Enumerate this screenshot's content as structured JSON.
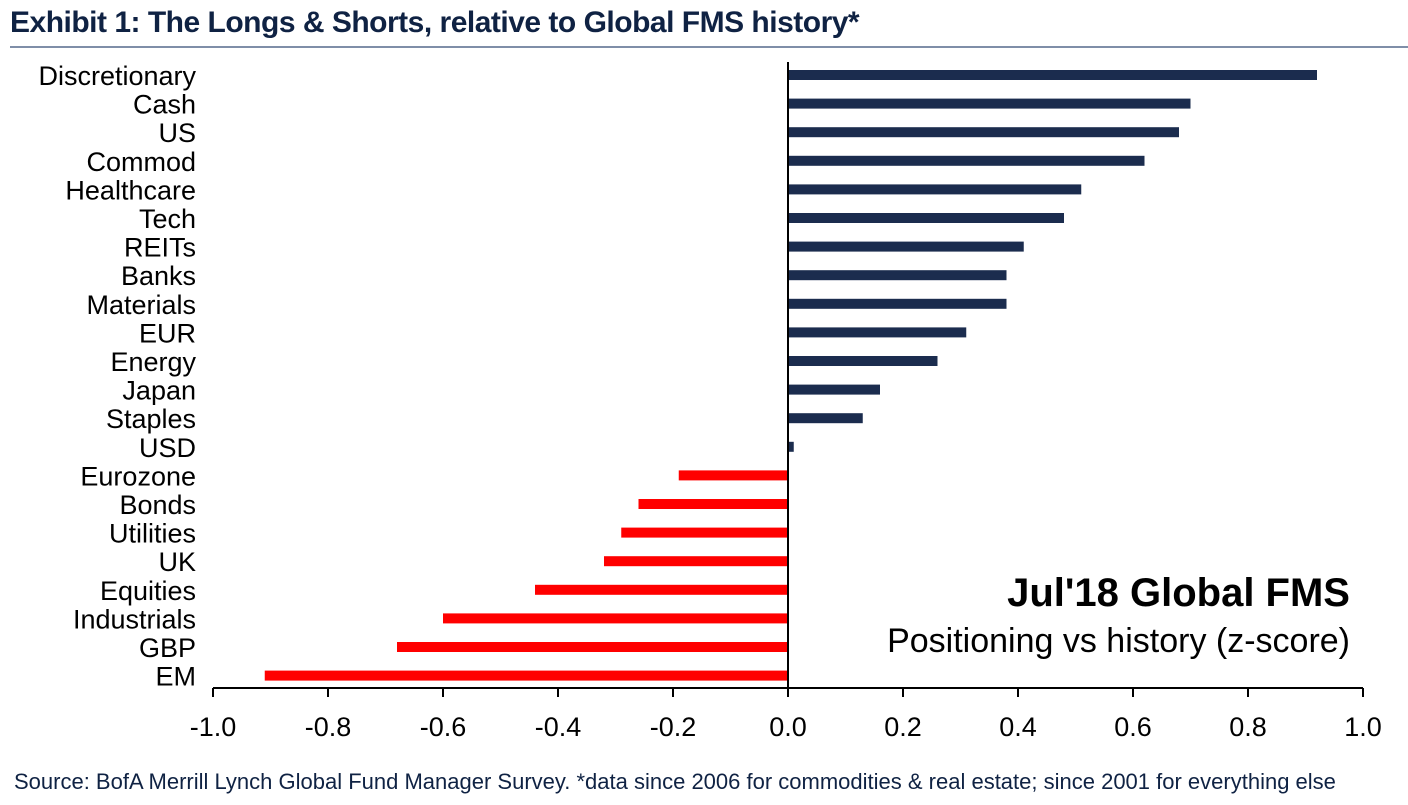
{
  "exhibit_title": "Exhibit 1:  The Longs & Shorts, relative to Global FMS history*",
  "source_note": "Source:  BofA Merrill Lynch Global Fund Manager Survey. *data since 2006 for commodities & real estate; since 2001  for everything else",
  "colors": {
    "positive": "#1b2c4e",
    "negative": "#ff0000",
    "title": "#0f2243",
    "rule": "#7f8ea8"
  },
  "chart_data": {
    "type": "bar",
    "orientation": "horizontal",
    "categories": [
      "Discretionary",
      "Cash",
      "US",
      "Commod",
      "Healthcare",
      "Tech",
      "REITs",
      "Banks",
      "Materials",
      "EUR",
      "Energy",
      "Japan",
      "Staples",
      "USD",
      "Eurozone",
      "Bonds",
      "Utilities",
      "UK",
      "Equities",
      "Industrials",
      "GBP",
      "EM"
    ],
    "values": [
      0.92,
      0.7,
      0.68,
      0.62,
      0.51,
      0.48,
      0.41,
      0.38,
      0.38,
      0.31,
      0.26,
      0.16,
      0.13,
      0.01,
      -0.19,
      -0.26,
      -0.29,
      -0.32,
      -0.44,
      -0.6,
      -0.68,
      -0.91
    ],
    "xlim": [
      -1.0,
      1.0
    ],
    "xticks": [
      -1.0,
      -0.8,
      -0.6,
      -0.4,
      -0.2,
      0.0,
      0.2,
      0.4,
      0.6,
      0.8,
      1.0
    ],
    "xtick_labels": [
      "-1.0",
      "-0.8",
      "-0.6",
      "-0.4",
      "-0.2",
      "0.0",
      "0.2",
      "0.4",
      "0.6",
      "0.8",
      "1.0"
    ],
    "annotation": {
      "title": "Jul'18 Global FMS",
      "subtitle": "Positioning vs history (z-score)"
    },
    "grid": false,
    "legend": "none"
  }
}
